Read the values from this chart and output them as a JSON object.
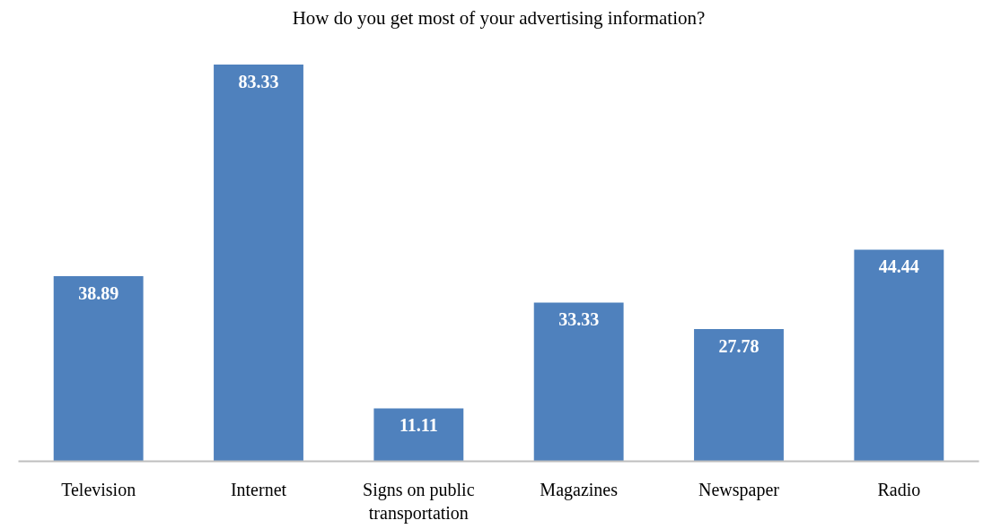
{
  "chart_data": {
    "type": "bar",
    "title": "How do you get most of your advertising information?",
    "categories": [
      "Television",
      "Internet",
      "Signs on public\ntransportation",
      "Magazines",
      "Newspaper",
      "Radio"
    ],
    "values": [
      38.89,
      83.33,
      11.11,
      33.33,
      27.78,
      44.44
    ],
    "color": "#4f81bd",
    "data_labels": true
  }
}
